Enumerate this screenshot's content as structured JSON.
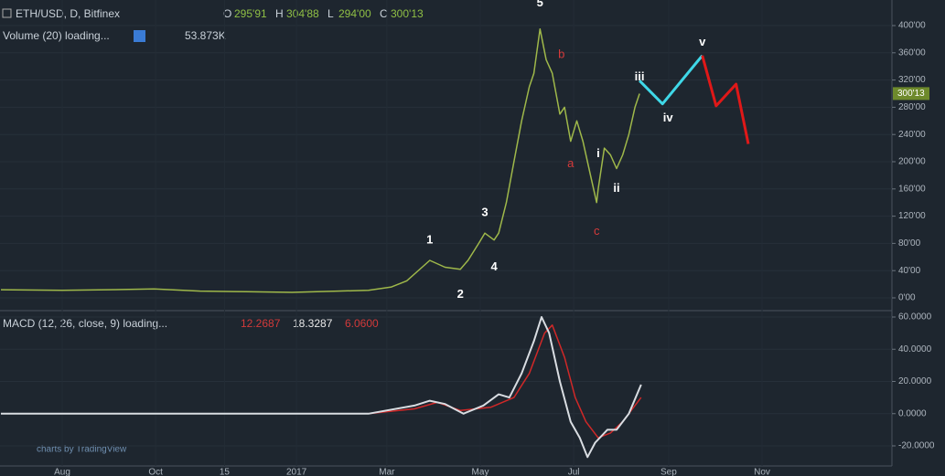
{
  "header": {
    "symbol": "ETH/USD, D, Bitfinex",
    "ohlc": [
      {
        "key": "O",
        "value": "295'91"
      },
      {
        "key": "H",
        "value": "304'88"
      },
      {
        "key": "L",
        "value": "294'00"
      },
      {
        "key": "C",
        "value": "300'13"
      }
    ],
    "volume_label": "Volume (20) loading...",
    "volume_value": "53.873K"
  },
  "price_pane": {
    "ylim": [
      -20,
      420
    ],
    "yticks": [
      {
        "value": 400,
        "label": "400'00"
      },
      {
        "value": 360,
        "label": "360'00"
      },
      {
        "value": 320,
        "label": "320'00"
      },
      {
        "value": 280,
        "label": "280'00"
      },
      {
        "value": 240,
        "label": "240'00"
      },
      {
        "value": 200,
        "label": "200'00"
      },
      {
        "value": 160,
        "label": "160'00"
      },
      {
        "value": 120,
        "label": "120'00"
      },
      {
        "value": 80,
        "label": "80'00"
      },
      {
        "value": 40,
        "label": "40'00"
      },
      {
        "value": 0,
        "label": "0'00"
      }
    ],
    "last_price": {
      "value": 300.13,
      "label": "300'13"
    },
    "x": [
      -40,
      0,
      30,
      60,
      90,
      120,
      150,
      180,
      200,
      215,
      225,
      235,
      240,
      250,
      260,
      265,
      272,
      276,
      282,
      285,
      290,
      295,
      300,
      305,
      308,
      312,
      316,
      320,
      325,
      328,
      332,
      336,
      340,
      345,
      349,
      350,
      354,
      358,
      362,
      366,
      370,
      374,
      377
    ],
    "close": [
      12,
      11,
      12,
      13,
      10,
      9,
      8,
      10,
      11,
      16,
      25,
      45,
      55,
      45,
      42,
      55,
      80,
      95,
      85,
      95,
      140,
      200,
      260,
      310,
      330,
      395,
      350,
      330,
      270,
      280,
      230,
      260,
      230,
      180,
      140,
      160,
      220,
      210,
      190,
      210,
      240,
      280,
      300
    ],
    "forecast": [
      {
        "color": "#3fd8e8",
        "x": [
          377,
          392,
          418
        ],
        "values": [
          319,
          285,
          356
        ]
      },
      {
        "color": "#e01818",
        "x": [
          418,
          427,
          440,
          448
        ],
        "values": [
          356,
          282,
          314,
          226
        ]
      }
    ],
    "waves": [
      {
        "label": "1",
        "x": 240,
        "value": 55
      },
      {
        "label": "2",
        "x": 260,
        "value": 42
      },
      {
        "label": "3",
        "x": 276,
        "value": 95
      },
      {
        "label": "4",
        "x": 282,
        "value": 85
      },
      {
        "label": "5",
        "x": 312,
        "value": 395
      },
      {
        "label": "a",
        "x": 332,
        "value": 230
      },
      {
        "label": "b",
        "x": 320,
        "value": 330
      },
      {
        "label": "c",
        "x": 349,
        "value": 140
      },
      {
        "label": "i",
        "x": 350,
        "value": 160
      },
      {
        "label": "ii",
        "x": 362,
        "value": 190
      },
      {
        "label": "iii",
        "x": 377,
        "value": 300
      },
      {
        "label": "iv",
        "x": 392,
        "value": 285
      },
      {
        "label": "v",
        "x": 418,
        "value": 356
      }
    ]
  },
  "macd_pane": {
    "title": "MACD (12, 26, close, 9) loading...",
    "values": [
      "12.2687",
      "18.3287",
      "6.0600"
    ],
    "ylim": [
      -29,
      63
    ],
    "yticks": [
      {
        "value": 60,
        "label": "60.0000"
      },
      {
        "value": 40,
        "label": "40.0000"
      },
      {
        "value": 20,
        "label": "20.0000"
      },
      {
        "value": 0,
        "label": "0.0000"
      },
      {
        "value": -20,
        "label": "-20.0000"
      }
    ],
    "macd": {
      "x": [
        -40,
        200,
        230,
        240,
        250,
        262,
        275,
        285,
        292,
        300,
        308,
        313,
        318,
        325,
        332,
        338,
        343,
        348,
        356,
        362,
        370,
        378
      ],
      "values": [
        0,
        0,
        5,
        8,
        6,
        0,
        5,
        12,
        10,
        25,
        45,
        60,
        50,
        20,
        -5,
        -15,
        -27,
        -18,
        -10,
        -10,
        0,
        18
      ]
    },
    "signal": {
      "x": [
        -40,
        200,
        230,
        245,
        260,
        280,
        295,
        305,
        315,
        320,
        328,
        335,
        342,
        350,
        358,
        366,
        378
      ],
      "values": [
        0,
        0,
        3,
        7,
        2,
        4,
        10,
        25,
        50,
        55,
        35,
        10,
        -5,
        -15,
        -12,
        -5,
        10
      ]
    }
  },
  "x_axis": [
    {
      "x": 0,
      "label": "Aug"
    },
    {
      "x": 61,
      "label": "Oct"
    },
    {
      "x": 106,
      "label": "15"
    },
    {
      "x": 153,
      "label": "2017"
    },
    {
      "x": 212,
      "label": "Mar"
    },
    {
      "x": 273,
      "label": "May"
    },
    {
      "x": 334,
      "label": "Jul"
    },
    {
      "x": 396,
      "label": "Sep"
    },
    {
      "x": 457,
      "label": "Nov"
    }
  ],
  "watermark": "charts by TradingView"
}
